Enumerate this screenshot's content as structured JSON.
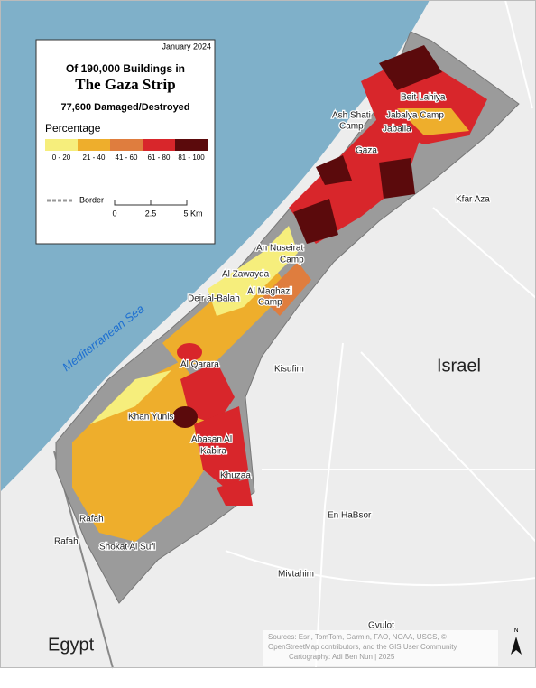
{
  "info_box": {
    "date": "January 2024",
    "title_line1": "Of 190,000 Buildings in",
    "title_line2": "The Gaza Strip",
    "subtitle": "77,600 Damaged/Destroyed",
    "legend_title": "Percentage",
    "legend": [
      {
        "label": "0 - 20",
        "color": "#f6ee7c"
      },
      {
        "label": "21 - 40",
        "color": "#eeae2c"
      },
      {
        "label": "41 - 60",
        "color": "#df7d3e"
      },
      {
        "label": "61 - 80",
        "color": "#d8262b"
      },
      {
        "label": "81 - 100",
        "color": "#5b0a0c"
      }
    ],
    "border_label": "Border",
    "scale_labels": [
      "0",
      "2.5",
      "5 Km"
    ]
  },
  "places": [
    "Beit Lahiya",
    "Ash Shati",
    "Camp",
    "Jabalya Camp",
    "Jabalia",
    "Gaza",
    "Kfar Aza",
    "An Nuseirat",
    "Camp",
    "Al Zawayda",
    "Deir al-Balah",
    "Al Maghazi",
    "Camp",
    "Mediterranean Sea",
    "Israel",
    "Kisufim",
    "Al Qarara",
    "Khan Yunis",
    "Abasan Al",
    "Kabira",
    "Khuzaa",
    "En HaBsor",
    "Rafah",
    "Rafah",
    "Shokat Al Sufi",
    "Mivtahim",
    "Gvulot",
    "Egypt"
  ],
  "sources": [
    "Sources: Esri, TomTom, Garmin, FAO, NOAA, USGS, ©",
    "OpenStreetMap contributors, and the GIS User Community",
    "Cartography: Adi Ben Nun | 2025"
  ],
  "north": "N"
}
